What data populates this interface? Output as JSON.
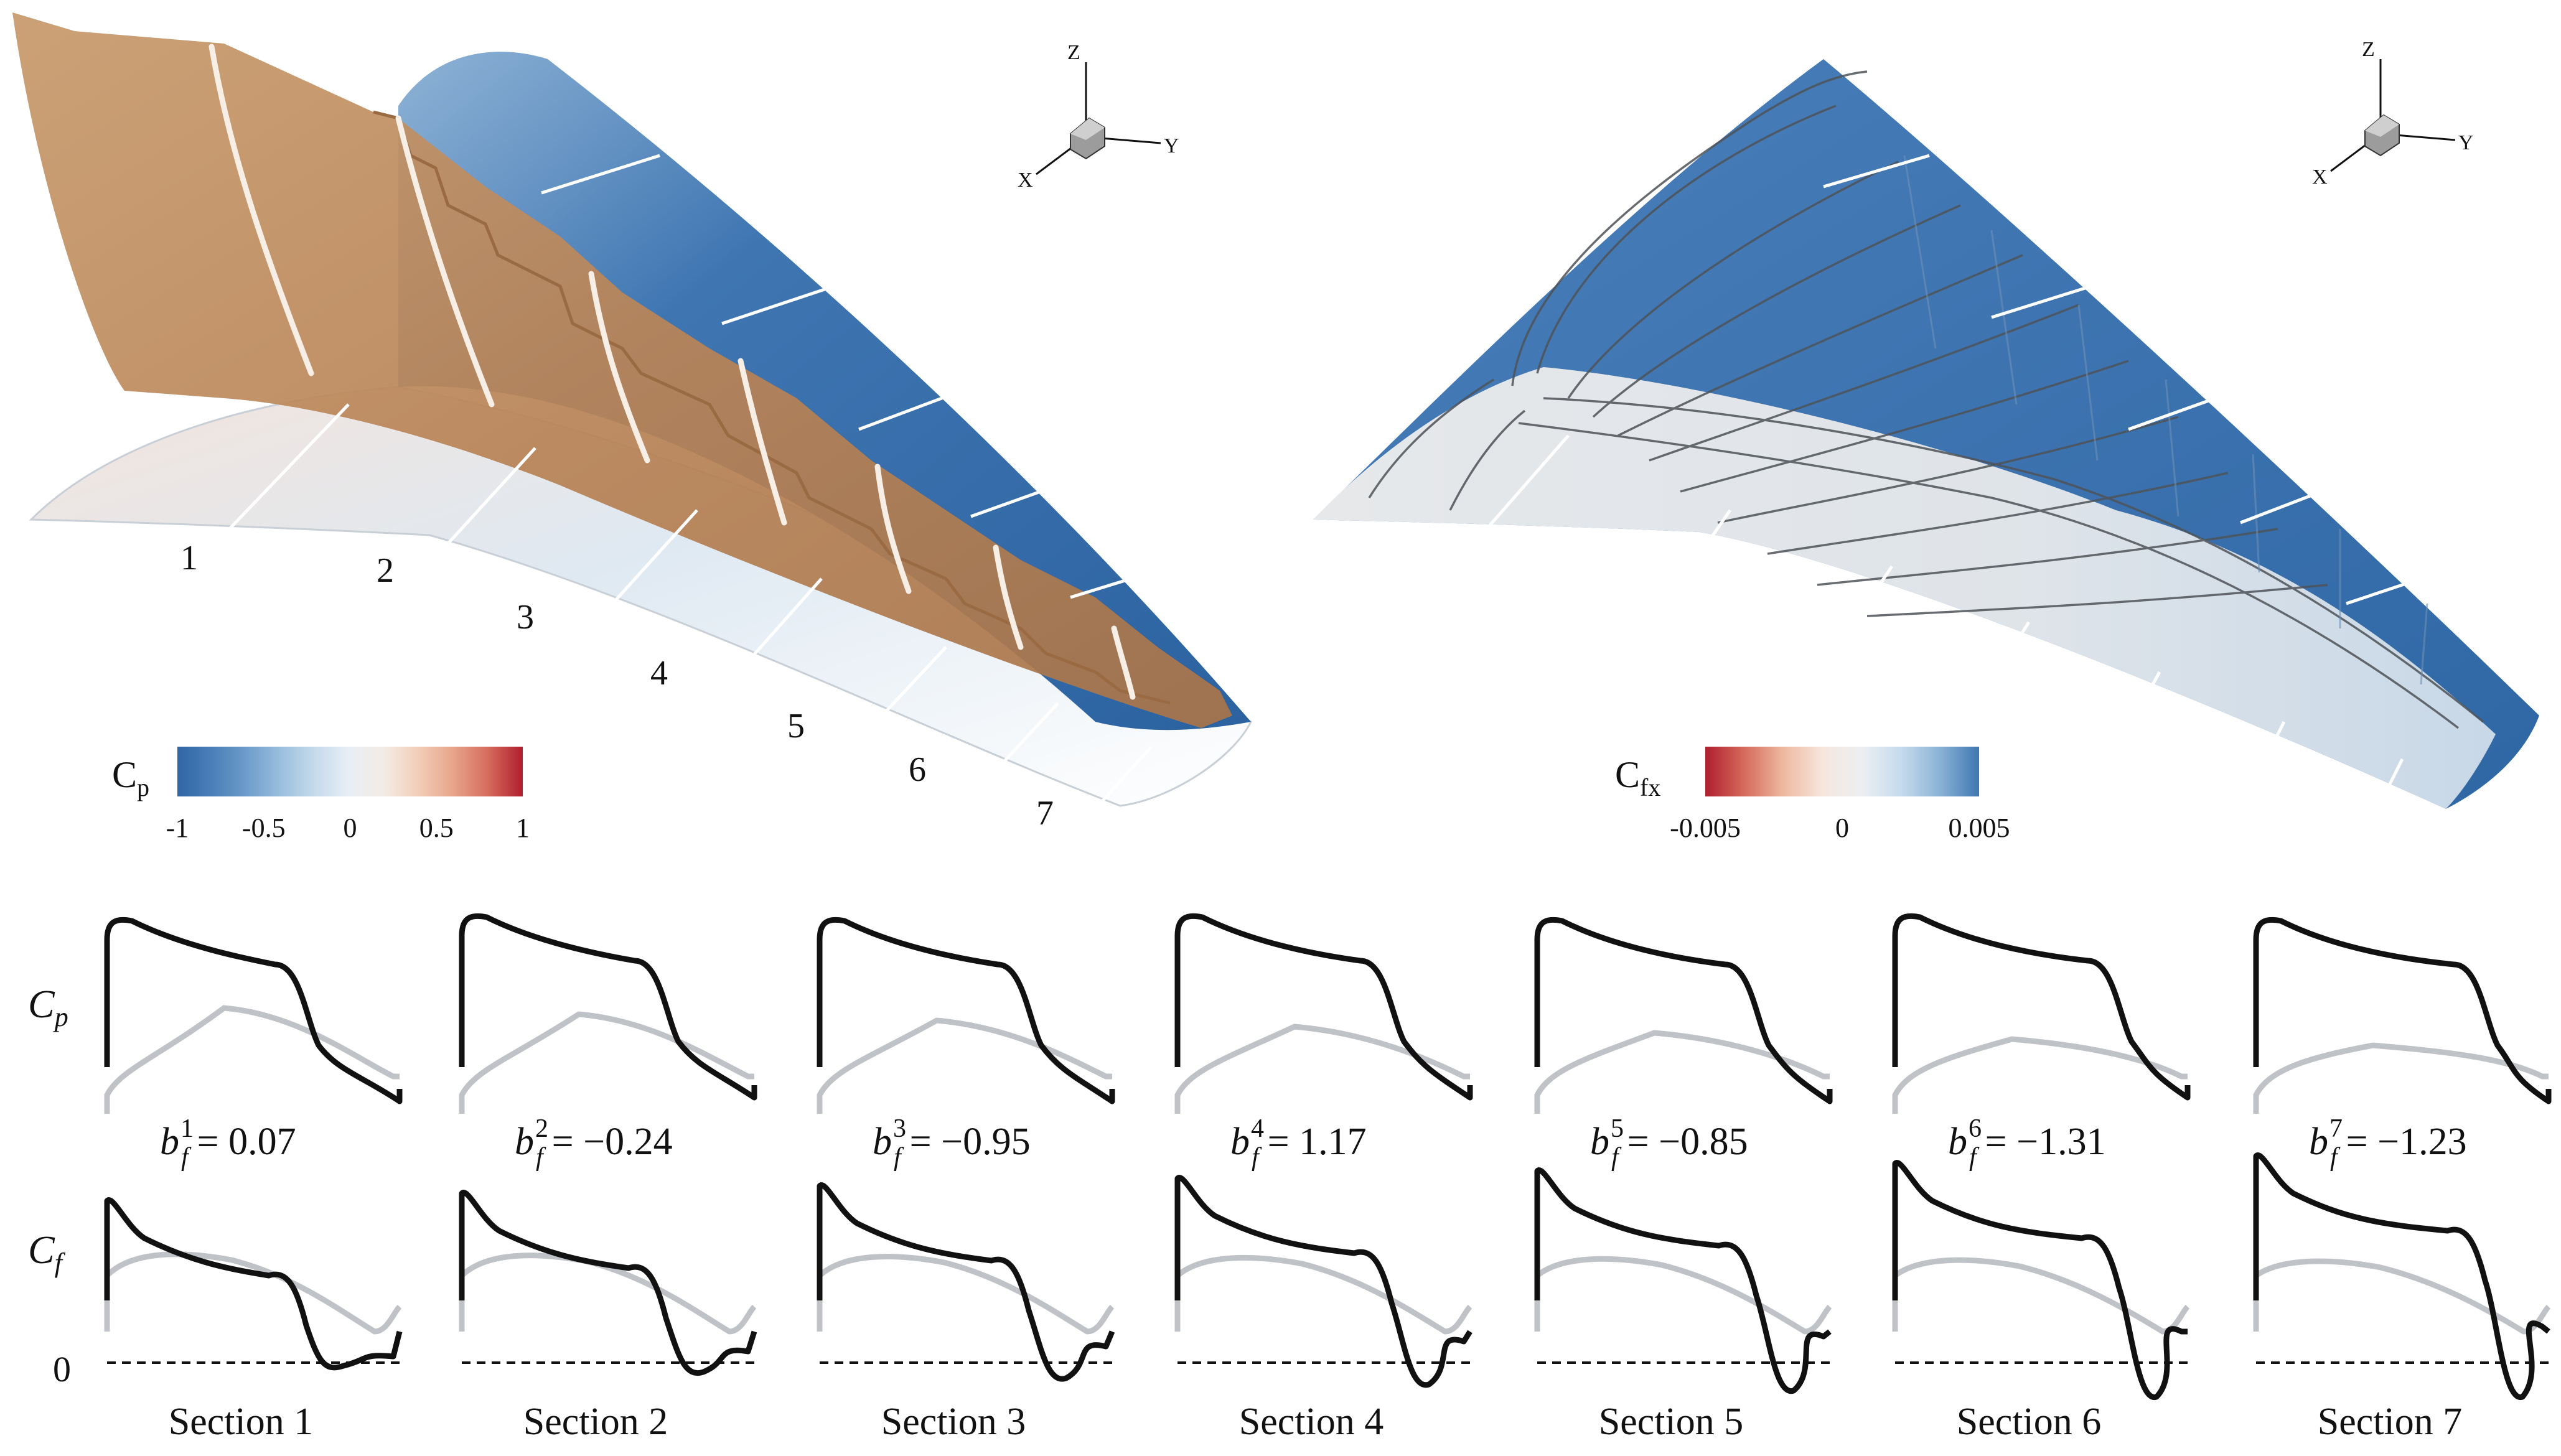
{
  "left_panel": {
    "section_numbers": [
      "1",
      "2",
      "3",
      "4",
      "5",
      "6",
      "7"
    ],
    "colorbar": {
      "label_main": "C",
      "label_sub": "p",
      "ticks": [
        "-1",
        "-0.5",
        "0",
        "0.5",
        "1"
      ],
      "range": [
        -1,
        1
      ],
      "colors": [
        "#2f66a6",
        "#4a7fb8",
        "#6e9ccb",
        "#9bbfdd",
        "#c6dbec",
        "#e8eff5",
        "#f4ebe4",
        "#f2cdb7",
        "#e7a48a",
        "#d66b5c",
        "#b01e2e"
      ]
    },
    "axis_triad": {
      "x": "X",
      "y": "Y",
      "z": "Z"
    }
  },
  "right_panel": {
    "colorbar": {
      "label_main": "C",
      "label_sub": "fx",
      "ticks": [
        "-0.005",
        "0",
        "0.005"
      ],
      "range": [
        -0.005,
        0.005
      ],
      "colors": [
        "#b01e2e",
        "#d66b5c",
        "#eeb9a0",
        "#f6e6dd",
        "#eceff2",
        "#c6dbec",
        "#8ab3d6",
        "#3f76b2"
      ]
    },
    "axis_triad": {
      "x": "X",
      "y": "Y",
      "z": "Z"
    }
  },
  "row_labels": {
    "cp_main": "C",
    "cp_sub": "p",
    "cf_main": "C",
    "cf_sub": "f",
    "cf_zero": "0"
  },
  "sections": [
    {
      "title": "Section 1",
      "b_var": "b",
      "b_sub": "f",
      "b_sup": "1",
      "b_value": "= 0.07"
    },
    {
      "title": "Section 2",
      "b_var": "b",
      "b_sub": "f",
      "b_sup": "2",
      "b_value": "= −0.24"
    },
    {
      "title": "Section 3",
      "b_var": "b",
      "b_sub": "f",
      "b_sup": "3",
      "b_value": "= −0.95"
    },
    {
      "title": "Section 4",
      "b_var": "b",
      "b_sub": "f",
      "b_sup": "4",
      "b_value": "= 1.17"
    },
    {
      "title": "Section 5",
      "b_var": "b",
      "b_sub": "f",
      "b_sup": "5",
      "b_value": "= −0.85"
    },
    {
      "title": "Section 6",
      "b_var": "b",
      "b_sub": "f",
      "b_sup": "6",
      "b_value": "= −1.31"
    },
    {
      "title": "Section 7",
      "b_var": "b",
      "b_sub": "f",
      "b_sup": "7",
      "b_value": "= −1.23"
    }
  ],
  "colors": {
    "upper_curve": "#111111",
    "lower_curve": "#bfc3c7",
    "zero_line": "#111111",
    "surface_blue": "#3a70a8",
    "surface_pale": "#e4ebf1",
    "isosurface": "#c99a6a"
  }
}
